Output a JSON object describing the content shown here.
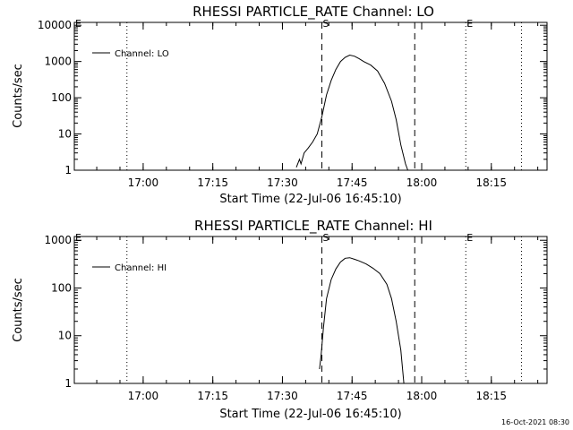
{
  "timestamp": "16-Oct-2021 08:30",
  "chart_data": [
    {
      "type": "line",
      "title": "RHESSI PARTICLE_RATE Channel: LO",
      "xlabel": "Start Time (22-Jul-06 16:45:10)",
      "ylabel": "Counts/sec",
      "yscale": "log",
      "xlim": [
        "16:45:10",
        "18:27:00"
      ],
      "ylim": [
        1,
        12000
      ],
      "x_ticks": [
        "17:00",
        "17:15",
        "17:30",
        "17:45",
        "18:00",
        "18:15"
      ],
      "y_ticks": [
        "1",
        "10",
        "100",
        "1000",
        "10000"
      ],
      "legend": {
        "entries": [
          "Channel: LO"
        ],
        "position": "top-left"
      },
      "vlines": [
        {
          "time": "16:56:30",
          "style": "dotted",
          "label": ""
        },
        {
          "time": "17:38:30",
          "style": "dashed",
          "label": "S"
        },
        {
          "time": "17:58:30",
          "style": "dashed",
          "label": ""
        },
        {
          "time": "18:09:30",
          "style": "dotted",
          "label": "E"
        },
        {
          "time": "18:21:30",
          "style": "dotted",
          "label": ""
        },
        {
          "time": "16:45:10",
          "style": "none",
          "label": "E"
        }
      ],
      "series": [
        {
          "name": "Channel: LO",
          "x": [
            "17:33:00",
            "17:33:40",
            "17:34:00",
            "17:34:40",
            "17:35:30",
            "17:36:30",
            "17:37:30",
            "17:38:30",
            "17:39:30",
            "17:40:30",
            "17:41:30",
            "17:42:30",
            "17:43:30",
            "17:44:30",
            "17:45:30",
            "17:46:30",
            "17:47:30",
            "17:49:00",
            "17:50:30",
            "17:52:00",
            "17:53:30",
            "17:54:30",
            "17:55:30",
            "17:56:30",
            "17:57:00"
          ],
          "y": [
            1.2,
            2,
            1.5,
            3,
            4,
            6,
            10,
            30,
            120,
            300,
            600,
            1000,
            1300,
            1500,
            1400,
            1200,
            1000,
            800,
            550,
            250,
            80,
            25,
            5,
            1.5,
            1
          ]
        }
      ]
    },
    {
      "type": "line",
      "title": "RHESSI PARTICLE_RATE Channel: HI",
      "xlabel": "Start Time (22-Jul-06 16:45:10)",
      "ylabel": "Counts/sec",
      "yscale": "log",
      "xlim": [
        "16:45:10",
        "18:27:00"
      ],
      "ylim": [
        1,
        1200
      ],
      "x_ticks": [
        "17:00",
        "17:15",
        "17:30",
        "17:45",
        "18:00",
        "18:15"
      ],
      "y_ticks": [
        "1",
        "10",
        "100",
        "1000"
      ],
      "legend": {
        "entries": [
          "Channel: HI"
        ],
        "position": "top-left"
      },
      "vlines": [
        {
          "time": "16:56:30",
          "style": "dotted",
          "label": ""
        },
        {
          "time": "17:38:30",
          "style": "dashed",
          "label": "S"
        },
        {
          "time": "17:58:30",
          "style": "dashed",
          "label": ""
        },
        {
          "time": "18:09:30",
          "style": "dotted",
          "label": "E"
        },
        {
          "time": "18:21:30",
          "style": "dotted",
          "label": ""
        },
        {
          "time": "16:45:10",
          "style": "none",
          "label": "E"
        }
      ],
      "series": [
        {
          "name": "Channel: HI",
          "x": [
            "17:38:00",
            "17:38:20",
            "17:38:50",
            "17:39:30",
            "17:40:30",
            "17:41:30",
            "17:42:30",
            "17:43:30",
            "17:44:30",
            "17:45:30",
            "17:46:30",
            "17:48:00",
            "17:49:30",
            "17:51:00",
            "17:52:30",
            "17:53:30",
            "17:54:30",
            "17:55:30",
            "17:56:10"
          ],
          "y": [
            2,
            4,
            15,
            60,
            150,
            250,
            350,
            420,
            430,
            400,
            370,
            320,
            260,
            200,
            120,
            60,
            20,
            5,
            1
          ]
        }
      ]
    }
  ]
}
